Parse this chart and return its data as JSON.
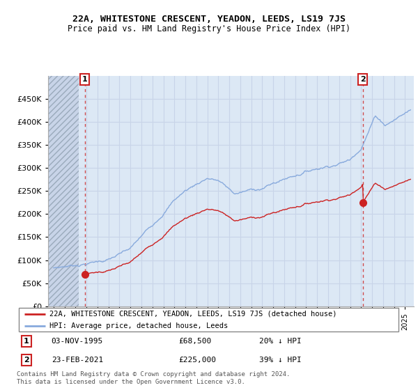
{
  "title1": "22A, WHITESTONE CRESCENT, YEADON, LEEDS, LS19 7JS",
  "title2": "Price paid vs. HM Land Registry's House Price Index (HPI)",
  "legend_line1": "22A, WHITESTONE CRESCENT, YEADON, LEEDS, LS19 7JS (detached house)",
  "legend_line2": "HPI: Average price, detached house, Leeds",
  "annotation1_date": "03-NOV-1995",
  "annotation1_price": "£68,500",
  "annotation1_hpi": "20% ↓ HPI",
  "annotation2_date": "23-FEB-2021",
  "annotation2_price": "£225,000",
  "annotation2_hpi": "39% ↓ HPI",
  "footnote": "Contains HM Land Registry data © Crown copyright and database right 2024.\nThis data is licensed under the Open Government Licence v3.0.",
  "sale1_year": 1995.84,
  "sale1_price": 68500,
  "sale2_year": 2021.15,
  "sale2_price": 225000,
  "price_color": "#cc2222",
  "hpi_color": "#88aadd",
  "ylim": [
    0,
    500000
  ],
  "yticks": [
    0,
    50000,
    100000,
    150000,
    200000,
    250000,
    300000,
    350000,
    400000,
    450000
  ],
  "xlim_start": 1992.5,
  "xlim_end": 2025.8,
  "grid_color": "#c8d4e8",
  "chart_bg": "#dce8f5",
  "hatch_area_end": 1995.3
}
